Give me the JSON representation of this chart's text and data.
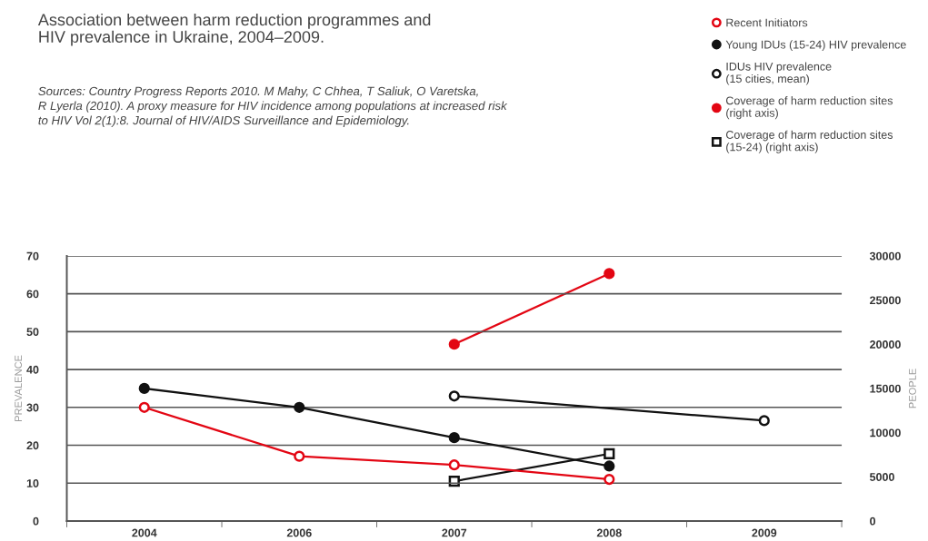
{
  "chart_data": {
    "type": "line",
    "title": "Association between harm reduction programmes and\nHIV prevalence in Ukraine, 2004–2009.",
    "annotations": [
      "Sources: Country Progress Reports 2010. M Mahy, C Chhea, T Saliuk, O Varetska,\nR Lyerla (2010). A proxy measure for HIV incidence among populations at increased risk\nto HIV Vol 2(1):8. Journal of HIV/AIDS Surveillance and Epidemiology."
    ],
    "categories": [
      "2004",
      "2006",
      "2007",
      "2008",
      "2009"
    ],
    "ylabel": "PREVALENCE",
    "y2label": "PEOPLE",
    "ylim": [
      0,
      70
    ],
    "yticks": [
      0,
      10,
      20,
      30,
      40,
      50,
      60,
      70
    ],
    "y2lim": [
      0,
      30000
    ],
    "y2ticks": [
      0,
      5000,
      10000,
      15000,
      20000,
      25000,
      30000
    ],
    "grid": "y",
    "legend": "top right",
    "series": [
      {
        "name": "Recent Initiators",
        "color": "#e30613",
        "marker": "circle",
        "values": [
          30,
          17.1,
          14.8,
          11,
          null
        ]
      },
      {
        "name": "Young IDUs (15-24) HIV prevalence",
        "color": "#111111",
        "marker": "circle",
        "values": [
          35,
          30,
          22,
          14.5,
          null
        ]
      },
      {
        "name": "IDUs HIV prevalence\n(15 cities, mean)",
        "color": "#111111",
        "marker": "circle",
        "values": [
          null,
          null,
          33,
          null,
          26.5
        ]
      },
      {
        "name": "Coverage of harm reduction sites\n(right axis)",
        "color": "#e30613",
        "marker": "circle",
        "axis": "y2",
        "values": [
          null,
          null,
          20000,
          28000,
          null
        ]
      },
      {
        "name": "Coverage of harm reduction sites\n(15-24) (right axis)",
        "color": "#111111",
        "marker": "square",
        "axis": "y2",
        "values": [
          null,
          null,
          4500,
          7600,
          null
        ]
      }
    ]
  }
}
